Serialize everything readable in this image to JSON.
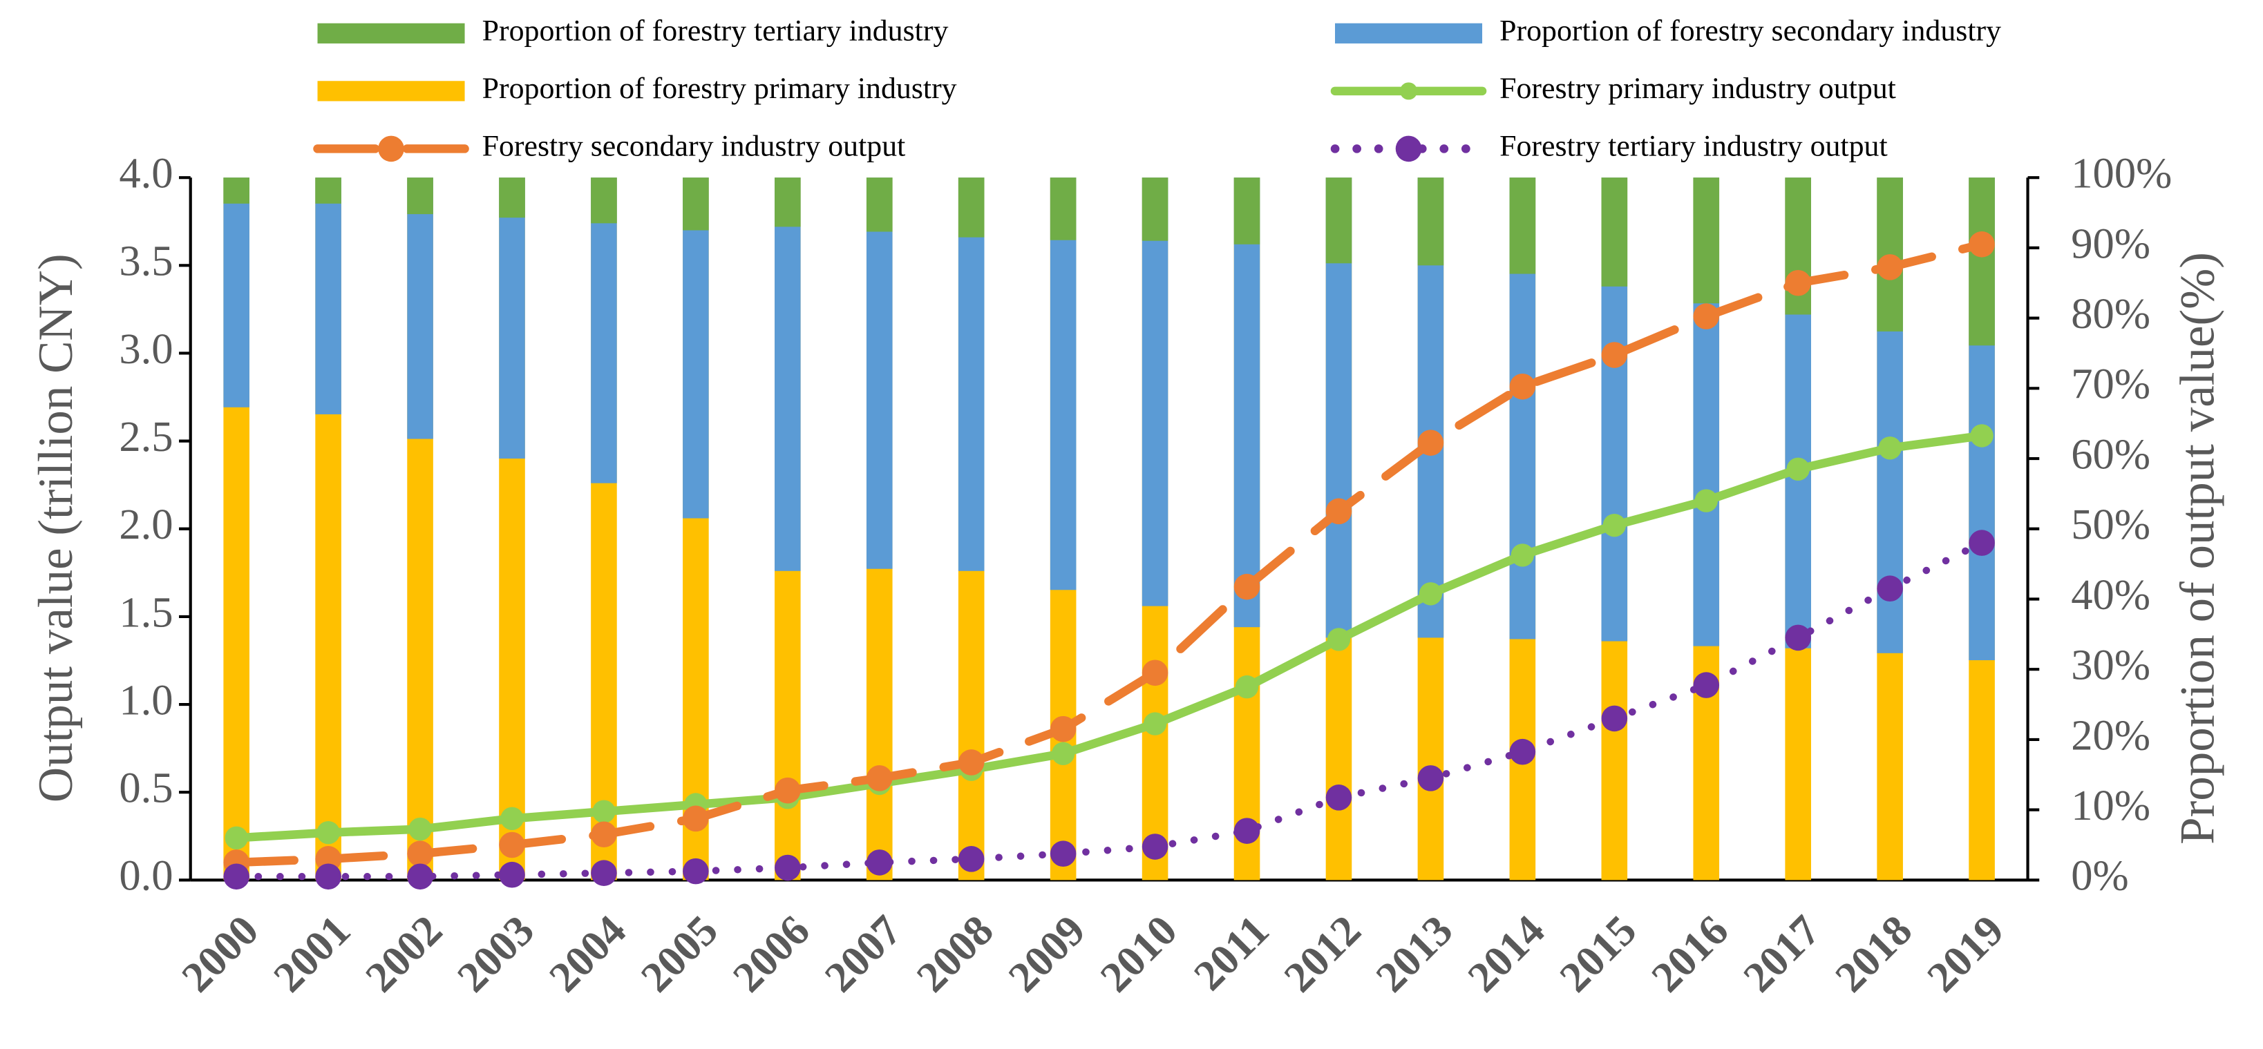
{
  "chart_data": {
    "type": "bar",
    "categories": [
      "2000",
      "2001",
      "2002",
      "2003",
      "2004",
      "2005",
      "2006",
      "2007",
      "2008",
      "2009",
      "2010",
      "2011",
      "2012",
      "2013",
      "2014",
      "2015",
      "2016",
      "2017",
      "2018",
      "2019"
    ],
    "ylabel": "Output value (trillion CNY)",
    "y2label": "Proportion of output value(%)",
    "ylim": [
      0,
      4
    ],
    "yticks": [
      {
        "value": 0,
        "label": "0.0"
      },
      {
        "value": 0.5,
        "label": "0.5"
      },
      {
        "value": 1,
        "label": "1.0"
      },
      {
        "value": 1.5,
        "label": "1.5"
      },
      {
        "value": 2,
        "label": "2.0"
      },
      {
        "value": 2.5,
        "label": "2.5"
      },
      {
        "value": 3,
        "label": "3.0"
      },
      {
        "value": 3.5,
        "label": "3.5"
      },
      {
        "value": 4,
        "label": "4.0"
      }
    ],
    "y2lim": [
      0,
      100
    ],
    "y2ticks": [
      {
        "value": 0,
        "label": "0%"
      },
      {
        "value": 10,
        "label": "10%"
      },
      {
        "value": 20,
        "label": "20%"
      },
      {
        "value": 30,
        "label": "30%"
      },
      {
        "value": 40,
        "label": "40%"
      },
      {
        "value": 50,
        "label": "50%"
      },
      {
        "value": 60,
        "label": "60%"
      },
      {
        "value": 70,
        "label": "70%"
      },
      {
        "value": 80,
        "label": "80%"
      },
      {
        "value": 90,
        "label": "90%"
      },
      {
        "value": 100,
        "label": "100%"
      }
    ],
    "series": [
      {
        "name": "Proportion of forestry primary industry",
        "type": "bar",
        "axis": "y2",
        "color": "#ffc000",
        "values": [
          67.3,
          66.3,
          62.8,
          60,
          56.5,
          51.5,
          44,
          44.3,
          44,
          41.3,
          39,
          36,
          34.5,
          34.5,
          34.3,
          34,
          33.3,
          33,
          32.3,
          31.3
        ]
      },
      {
        "name": "Proportion of forestry secondary industry",
        "type": "bar",
        "axis": "y2",
        "color": "#5b9bd5",
        "values": [
          29,
          30,
          32,
          34.3,
          37,
          41,
          49,
          48,
          47.5,
          49.8,
          52,
          54.5,
          53.3,
          53,
          52,
          50.5,
          48.8,
          47.5,
          45.8,
          44.8
        ]
      },
      {
        "name": "Proportion of forestry tertiary industry",
        "type": "bar",
        "axis": "y2",
        "color": "#70ad47",
        "values": [
          3.7,
          3.7,
          5.2,
          5.7,
          6.5,
          7.5,
          7,
          7.7,
          8.5,
          8.9,
          9,
          9.5,
          12.2,
          12.5,
          13.7,
          15.5,
          17.9,
          19.5,
          21.9,
          23.9
        ]
      },
      {
        "name": "Forestry primary industry output",
        "type": "line",
        "style": "solid",
        "color": "#92d050",
        "values": [
          0.24,
          0.27,
          0.29,
          0.35,
          0.39,
          0.43,
          0.47,
          0.55,
          0.63,
          0.72,
          0.89,
          1.1,
          1.37,
          1.63,
          1.85,
          2.02,
          2.16,
          2.34,
          2.46,
          2.53
        ]
      },
      {
        "name": "Forestry secondary industry output",
        "type": "line",
        "style": "dashed",
        "color": "#ed7d31",
        "values": [
          0.1,
          0.12,
          0.15,
          0.2,
          0.26,
          0.35,
          0.51,
          0.58,
          0.67,
          0.86,
          1.18,
          1.67,
          2.1,
          2.49,
          2.81,
          2.99,
          3.21,
          3.4,
          3.49,
          3.62
        ]
      },
      {
        "name": "Forestry tertiary industry output",
        "type": "line",
        "style": "dotted",
        "color": "#7030a0",
        "values": [
          0.02,
          0.02,
          0.02,
          0.03,
          0.04,
          0.05,
          0.07,
          0.1,
          0.12,
          0.15,
          0.19,
          0.28,
          0.47,
          0.58,
          0.73,
          0.92,
          1.11,
          1.38,
          1.66,
          1.92
        ]
      }
    ]
  }
}
